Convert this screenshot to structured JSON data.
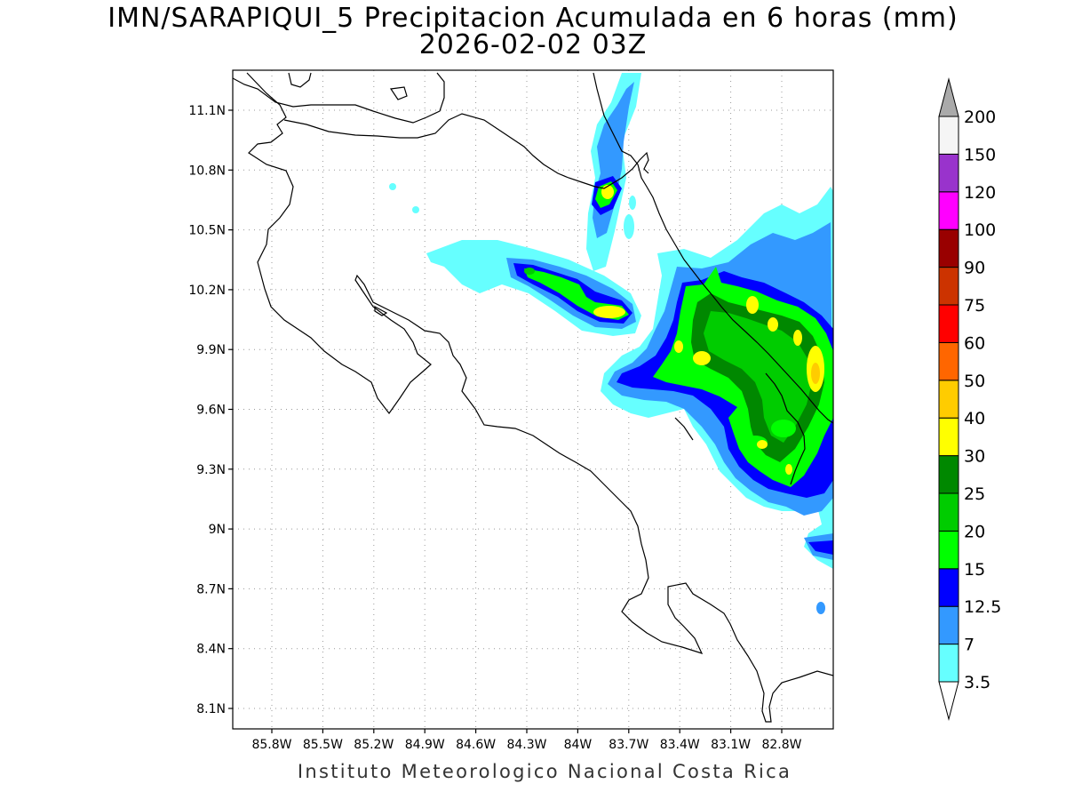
{
  "title": {
    "line1": "IMN/SARAPIQUI_5 Precipitacion Acumulada en 6 horas (mm)",
    "line2": "2026-02-02 03Z"
  },
  "footer": "Instituto Meteorologico Nacional Costa Rica",
  "map": {
    "lat_range": [
      8.0,
      11.3
    ],
    "lon_range": [
      -86.0,
      -83.0
    ],
    "lat_ticks": [
      "11.1N",
      "10.8N",
      "10.5N",
      "10.2N",
      "9.9N",
      "9.6N",
      "9.3N",
      "9N",
      "8.7N",
      "8.4N",
      "8.1N"
    ],
    "lon_ticks": [
      "85.8W",
      "85.5W",
      "85.2W",
      "84.9W",
      "84.6W",
      "84.3W",
      "84W",
      "83.7W",
      "83.4W",
      "83.1W",
      "82.8W"
    ],
    "grid": true
  },
  "colorbar": {
    "labels": [
      "3.5",
      "7",
      "12.5",
      "15",
      "20",
      "25",
      "30",
      "40",
      "50",
      "60",
      "75",
      "90",
      "100",
      "120",
      "150",
      "200"
    ],
    "colors": [
      "#66ffff",
      "#3399ff",
      "#0000ff",
      "#00ff00",
      "#00cc00",
      "#008800",
      "#ffff00",
      "#ffcc00",
      "#ff6600",
      "#ff0000",
      "#cc3300",
      "#990000",
      "#ff00ff",
      "#9933cc",
      "#f5f5f5"
    ],
    "over_color": "#aaaaaa",
    "under_color": "#ffffff"
  },
  "precip_colors": {
    "c3_5": "#66ffff",
    "c7": "#3399ff",
    "c12_5": "#0000ff",
    "c15": "#00ff00",
    "c20": "#00cc00",
    "c25": "#008800",
    "c30": "#ffff00",
    "c40": "#ffcc00"
  }
}
